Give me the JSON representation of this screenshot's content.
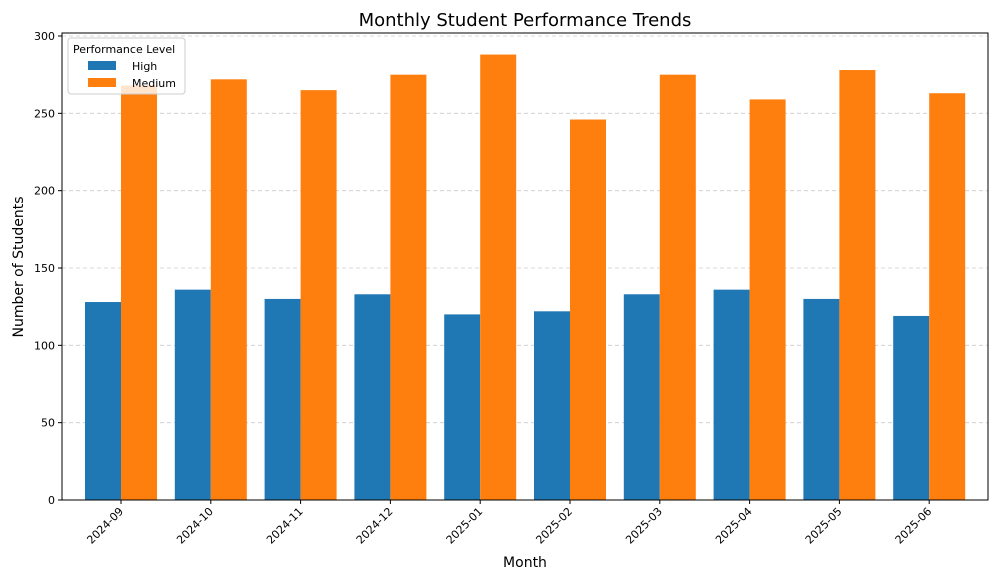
{
  "chart_data": {
    "type": "bar",
    "title": "Monthly Student Performance Trends",
    "xlabel": "Month",
    "ylabel": "Number of Students",
    "ylim": [
      0,
      300
    ],
    "yticks": [
      0,
      50,
      100,
      150,
      200,
      250,
      300
    ],
    "grid": "y-dashed",
    "legend": {
      "title": "Performance Level",
      "placement": "top-left"
    },
    "categories": [
      "2024-09",
      "2024-10",
      "2024-11",
      "2024-12",
      "2025-01",
      "2025-02",
      "2025-03",
      "2025-04",
      "2025-05",
      "2025-06"
    ],
    "series": [
      {
        "name": "High",
        "color": "#1f77b4",
        "values": [
          128,
          136,
          130,
          133,
          120,
          122,
          133,
          136,
          130,
          119
        ]
      },
      {
        "name": "Medium",
        "color": "#ff7f0e",
        "values": [
          268,
          272,
          265,
          275,
          288,
          246,
          275,
          259,
          278,
          263
        ]
      }
    ]
  }
}
